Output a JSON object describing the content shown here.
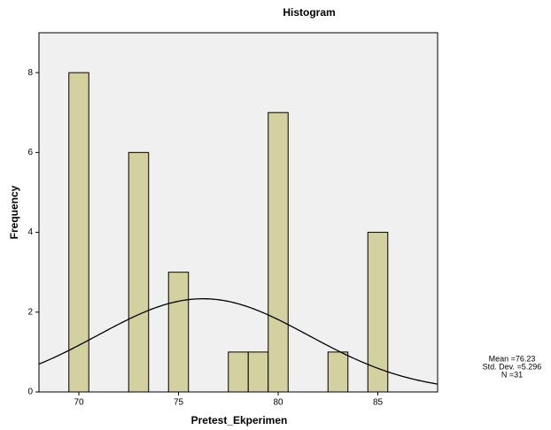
{
  "chart_data": {
    "type": "histogram",
    "title": "Histogram",
    "x_label": "Pretest_Ekperimen",
    "y_label": "Frequency",
    "bins": [
      69.5,
      70.5,
      71.5,
      72.5,
      73.5,
      74.5,
      75.5,
      76.5,
      77.5,
      78.5,
      79.5,
      80.5,
      81.5,
      82.5,
      83.5,
      84.5,
      85.5
    ],
    "counts": [
      8,
      0,
      0,
      6,
      0,
      3,
      0,
      0,
      1,
      1,
      7,
      0,
      0,
      1,
      0,
      4
    ],
    "color": "#d4d1a0",
    "xlim": [
      68,
      88
    ],
    "xticks": [
      70,
      75,
      80,
      85
    ],
    "ylim": [
      0,
      9
    ],
    "yticks": [
      0,
      2,
      4,
      6,
      8
    ],
    "stats": [
      {
        "value": 76.23,
        "label": "Mean =76.23"
      },
      {
        "value": 5.296,
        "label": "Std. Dev. =5.296"
      },
      {
        "value": 31,
        "label": "N =31"
      }
    ]
  }
}
